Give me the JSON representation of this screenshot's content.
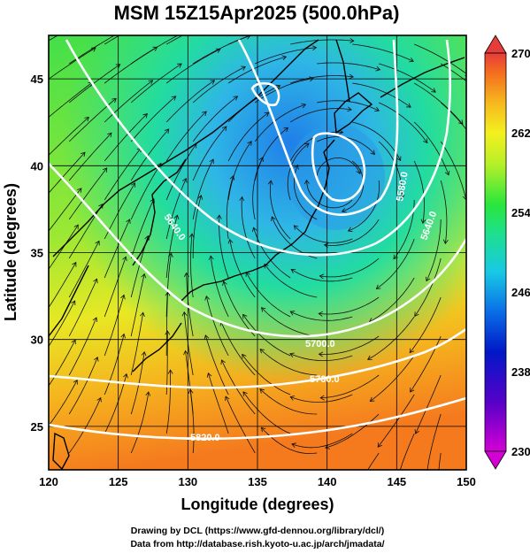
{
  "title": "MSM 15Z15Apr2025 (500.0hPa)",
  "xlabel": "Longitude (degrees)",
  "ylabel": "Latitude  (degrees)",
  "credits": [
    "Drawing by DCL (https://www.gfd-dennou.org/library/dcl/)",
    "Data from http://database.rish.kyoto-u.ac.jp/arch/jmadata/"
  ],
  "map": {
    "lon_range": [
      120,
      150
    ],
    "lat_range": [
      22.5,
      47.5
    ],
    "lon_ticks": [
      "120",
      "125",
      "130",
      "135",
      "140",
      "145",
      "150"
    ],
    "lat_ticks": [
      "25",
      "30",
      "35",
      "40",
      "45"
    ],
    "grid": true,
    "contour_labels": [
      "5820.0",
      "5760.0",
      "5700.0",
      "5640.0",
      "5580.0",
      "5640.0"
    ]
  },
  "colorbar": {
    "min": 230,
    "max": 270,
    "tick_labels": [
      "270",
      "262",
      "254",
      "246",
      "238",
      "230"
    ],
    "colors": [
      "#d400d4",
      "#5a00c8",
      "#0018c8",
      "#0a6ee6",
      "#19c8e6",
      "#1ee08a",
      "#2ae63c",
      "#b4f028",
      "#f5f01e",
      "#f5b41e",
      "#f56e1e",
      "#e63c3c"
    ]
  },
  "legend": {
    "cold_center_value": 244,
    "ridge_value": 266
  }
}
